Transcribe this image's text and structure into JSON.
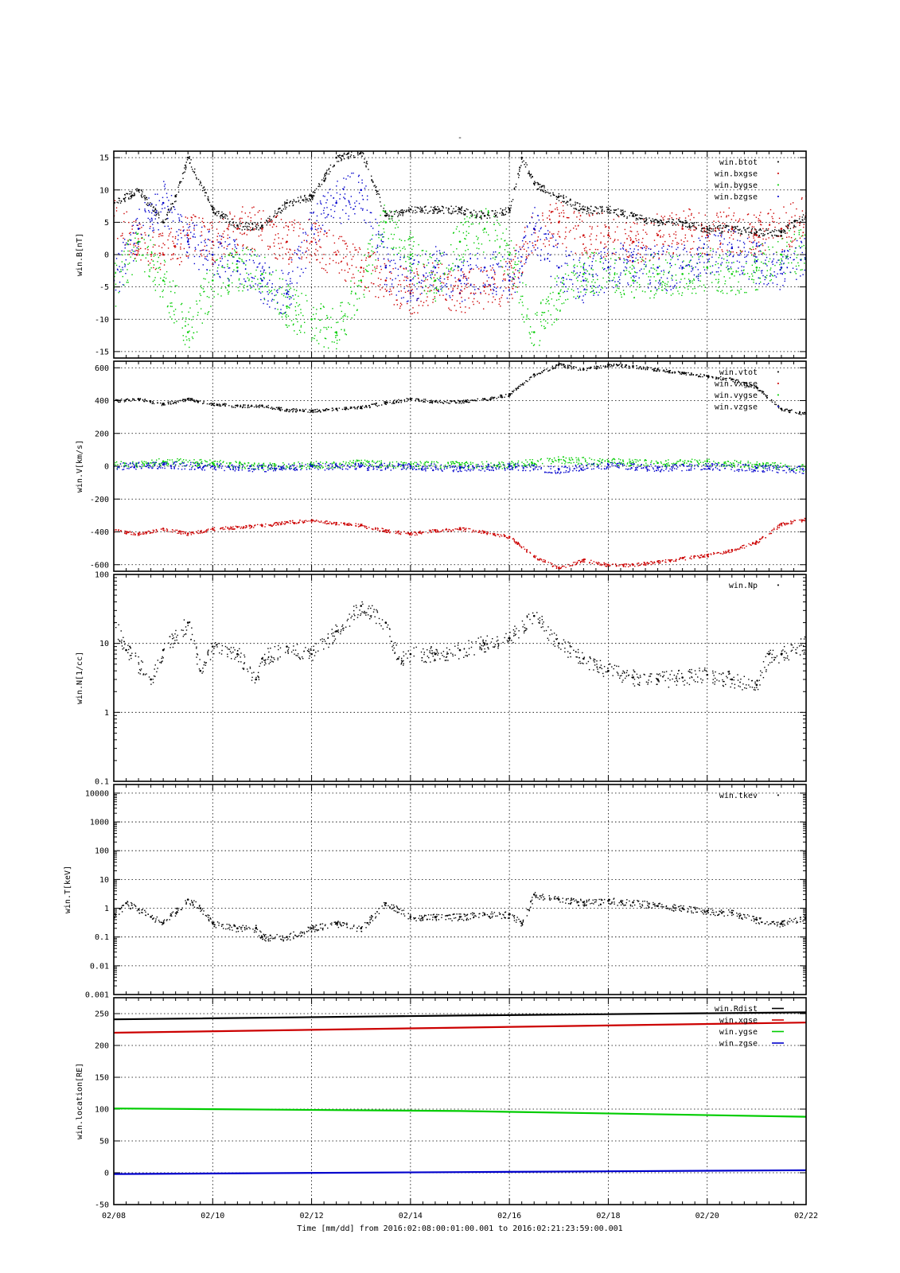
{
  "figure": {
    "title_mark": "-",
    "x_axis": {
      "label": "Time [mm/dd]  from 2016:02:08:00:01:00.001  to  2016:02:21:23:59:00.001",
      "start": "2016-02-08",
      "end": "2016-02-22",
      "ticks": [
        "02/08",
        "02/10",
        "02/12",
        "02/14",
        "02/16",
        "02/18",
        "02/20",
        "02/22"
      ]
    }
  },
  "colors": {
    "black": "#000000",
    "red": "#cc0000",
    "green": "#00cc00",
    "blue": "#0000cc"
  },
  "chart_data": [
    {
      "type": "scatter",
      "ylabel": "win.B[nT]",
      "yscale": "linear",
      "ylim": [
        -16,
        16
      ],
      "yticks": [
        15,
        10,
        5,
        0,
        -5,
        -10,
        -15
      ],
      "ytick_labels": [
        "15",
        "10",
        "5",
        "0",
        "-5",
        "-10",
        "-15"
      ],
      "grid": true,
      "legend_position": "top-right",
      "series": [
        {
          "name": "win.btot",
          "color": "black",
          "x": [
            "2016-02-08",
            "2016-02-08T12",
            "2016-02-09",
            "2016-02-09T06",
            "2016-02-09T12",
            "2016-02-10",
            "2016-02-10T12",
            "2016-02-11",
            "2016-02-11T12",
            "2016-02-12",
            "2016-02-12T12",
            "2016-02-13",
            "2016-02-13T12",
            "2016-02-14",
            "2016-02-14T12",
            "2016-02-15",
            "2016-02-15T12",
            "2016-02-16",
            "2016-02-16T06",
            "2016-02-16T12",
            "2016-02-17",
            "2016-02-17T12",
            "2016-02-18",
            "2016-02-18T12",
            "2016-02-19",
            "2016-02-19T12",
            "2016-02-20",
            "2016-02-20T12",
            "2016-02-21",
            "2016-02-21T12",
            "2016-02-22"
          ],
          "values": [
            8,
            10,
            5,
            9,
            15,
            7,
            4.5,
            4.5,
            8,
            9,
            15,
            16,
            6,
            7,
            7,
            7,
            6,
            7,
            15,
            11,
            9,
            7,
            7,
            6,
            5,
            5,
            4,
            4,
            3.5,
            3.5,
            6
          ]
        },
        {
          "name": "win.bxgse",
          "color": "red",
          "x": [
            "2016-02-08",
            "2016-02-08T12",
            "2016-02-09",
            "2016-02-09T12",
            "2016-02-10",
            "2016-02-10T12",
            "2016-02-11",
            "2016-02-11T12",
            "2016-02-12",
            "2016-02-12T12",
            "2016-02-13",
            "2016-02-13T12",
            "2016-02-14",
            "2016-02-14T12",
            "2016-02-15",
            "2016-02-15T12",
            "2016-02-16",
            "2016-02-16T12",
            "2016-02-17",
            "2016-02-17T12",
            "2016-02-18",
            "2016-02-18T12",
            "2016-02-19",
            "2016-02-19T12",
            "2016-02-20",
            "2016-02-20T12",
            "2016-02-21",
            "2016-02-21T12",
            "2016-02-22"
          ],
          "values": [
            6,
            2,
            0,
            3,
            2,
            4,
            4,
            2,
            2,
            0,
            -2,
            -4,
            -6,
            -4,
            -6,
            -5,
            -4,
            4,
            5,
            3,
            3,
            2,
            3,
            4,
            3,
            4,
            3,
            4,
            6
          ]
        },
        {
          "name": "win.bygse",
          "color": "green",
          "x": [
            "2016-02-08",
            "2016-02-08T12",
            "2016-02-09",
            "2016-02-09T12",
            "2016-02-10",
            "2016-02-10T12",
            "2016-02-11",
            "2016-02-11T12",
            "2016-02-12",
            "2016-02-12T12",
            "2016-02-13",
            "2016-02-13T12",
            "2016-02-14",
            "2016-02-14T12",
            "2016-02-15",
            "2016-02-15T12",
            "2016-02-16",
            "2016-02-16T12",
            "2016-02-17",
            "2016-02-17T12",
            "2016-02-18",
            "2016-02-18T12",
            "2016-02-19",
            "2016-02-19T12",
            "2016-02-20",
            "2016-02-20T12",
            "2016-02-21",
            "2016-02-21T12",
            "2016-02-22"
          ],
          "values": [
            -5,
            2,
            -4,
            -12,
            -4,
            -2,
            -3,
            -8,
            -10,
            -12,
            -4,
            5,
            0,
            -4,
            2,
            4,
            0,
            -12,
            -6,
            -3,
            -2,
            -4,
            -3,
            -3,
            -2,
            -3,
            -2,
            0,
            1
          ]
        },
        {
          "name": "win.bzgse",
          "color": "blue",
          "x": [
            "2016-02-08",
            "2016-02-08T12",
            "2016-02-09",
            "2016-02-09T12",
            "2016-02-10",
            "2016-02-10T12",
            "2016-02-11",
            "2016-02-11T12",
            "2016-02-12",
            "2016-02-12T12",
            "2016-02-13",
            "2016-02-13T12",
            "2016-02-14",
            "2016-02-14T12",
            "2016-02-15",
            "2016-02-15T12",
            "2016-02-16",
            "2016-02-16T12",
            "2016-02-17",
            "2016-02-17T12",
            "2016-02-18",
            "2016-02-18T12",
            "2016-02-19",
            "2016-02-19T12",
            "2016-02-20",
            "2016-02-20T12",
            "2016-02-21",
            "2016-02-21T12",
            "2016-02-22"
          ],
          "values": [
            -4,
            4,
            8,
            2,
            0,
            -1,
            -4,
            -6,
            4,
            8,
            10,
            -2,
            -4,
            -2,
            -4,
            -2,
            -4,
            4,
            -2,
            -4,
            -2,
            -1,
            -2,
            -2,
            0,
            1,
            -1,
            -2,
            0
          ]
        }
      ]
    },
    {
      "type": "scatter",
      "ylabel": "win.V[km/s]",
      "yscale": "linear",
      "ylim": [
        -640,
        640
      ],
      "yticks": [
        600,
        400,
        200,
        0,
        -200,
        -400,
        -600
      ],
      "ytick_labels": [
        "600",
        "400",
        "200",
        "0",
        "-200",
        "-400",
        "-600"
      ],
      "grid": true,
      "legend_position": "top-right",
      "series": [
        {
          "name": "win.vtot",
          "color": "black",
          "x": [
            "2016-02-08",
            "2016-02-08T12",
            "2016-02-09",
            "2016-02-09T12",
            "2016-02-10",
            "2016-02-10T12",
            "2016-02-11",
            "2016-02-11T12",
            "2016-02-12",
            "2016-02-12T12",
            "2016-02-13",
            "2016-02-13T12",
            "2016-02-14",
            "2016-02-14T12",
            "2016-02-15",
            "2016-02-15T12",
            "2016-02-16",
            "2016-02-16T12",
            "2016-02-17",
            "2016-02-17T12",
            "2016-02-18",
            "2016-02-18T12",
            "2016-02-19",
            "2016-02-19T12",
            "2016-02-20",
            "2016-02-20T12",
            "2016-02-21",
            "2016-02-21T12",
            "2016-02-22"
          ],
          "values": [
            400,
            410,
            380,
            410,
            380,
            370,
            370,
            345,
            340,
            350,
            360,
            390,
            410,
            395,
            395,
            410,
            440,
            560,
            620,
            590,
            620,
            610,
            590,
            570,
            550,
            530,
            480,
            350,
            320
          ]
        },
        {
          "name": "win.vxgse",
          "color": "red",
          "x": [
            "2016-02-08",
            "2016-02-08T12",
            "2016-02-09",
            "2016-02-09T12",
            "2016-02-10",
            "2016-02-10T12",
            "2016-02-11",
            "2016-02-11T12",
            "2016-02-12",
            "2016-02-12T12",
            "2016-02-13",
            "2016-02-13T12",
            "2016-02-14",
            "2016-02-14T12",
            "2016-02-15",
            "2016-02-15T12",
            "2016-02-16",
            "2016-02-16T12",
            "2016-02-17",
            "2016-02-17T12",
            "2016-02-18",
            "2016-02-18T12",
            "2016-02-19",
            "2016-02-19T12",
            "2016-02-20",
            "2016-02-20T12",
            "2016-02-21",
            "2016-02-21T12",
            "2016-02-22"
          ],
          "values": [
            -390,
            -410,
            -380,
            -410,
            -380,
            -370,
            -360,
            -340,
            -330,
            -345,
            -360,
            -390,
            -410,
            -390,
            -380,
            -400,
            -430,
            -550,
            -620,
            -570,
            -600,
            -600,
            -580,
            -560,
            -540,
            -510,
            -460,
            -350,
            -320
          ]
        },
        {
          "name": "win.vygse",
          "color": "green",
          "x": [
            "2016-02-08",
            "2016-02-09",
            "2016-02-10",
            "2016-02-11",
            "2016-02-12",
            "2016-02-13",
            "2016-02-14",
            "2016-02-15",
            "2016-02-16",
            "2016-02-17",
            "2016-02-18",
            "2016-02-19",
            "2016-02-20",
            "2016-02-21",
            "2016-02-22"
          ],
          "values": [
            10,
            30,
            20,
            0,
            10,
            20,
            10,
            10,
            10,
            40,
            30,
            20,
            30,
            10,
            -10
          ]
        },
        {
          "name": "win.vzgse",
          "color": "blue",
          "x": [
            "2016-02-08",
            "2016-02-09",
            "2016-02-10",
            "2016-02-11",
            "2016-02-12",
            "2016-02-13",
            "2016-02-14",
            "2016-02-15",
            "2016-02-16",
            "2016-02-17",
            "2016-02-18",
            "2016-02-19",
            "2016-02-20",
            "2016-02-21",
            "2016-02-22"
          ],
          "values": [
            0,
            10,
            0,
            -10,
            0,
            0,
            0,
            -10,
            0,
            -20,
            10,
            -10,
            0,
            -10,
            -20
          ]
        }
      ]
    },
    {
      "type": "scatter",
      "ylabel": "win.N[1/cc]",
      "yscale": "log",
      "ylim": [
        0.1,
        100
      ],
      "yticks": [
        100,
        10,
        1,
        0.1
      ],
      "ytick_labels": [
        "100",
        "10",
        "1",
        "0.1"
      ],
      "grid": true,
      "legend_position": "top-right",
      "series": [
        {
          "name": "win.Np",
          "color": "black",
          "x": [
            "2016-02-08",
            "2016-02-08T06",
            "2016-02-08T18",
            "2016-02-09",
            "2016-02-09T12",
            "2016-02-09T18",
            "2016-02-10",
            "2016-02-10T12",
            "2016-02-10T21",
            "2016-02-11",
            "2016-02-11T12",
            "2016-02-12",
            "2016-02-12T12",
            "2016-02-13",
            "2016-02-13T12",
            "2016-02-13T18",
            "2016-02-14",
            "2016-02-14T12",
            "2016-02-15",
            "2016-02-15T12",
            "2016-02-16",
            "2016-02-16T12",
            "2016-02-17",
            "2016-02-17T12",
            "2016-02-18",
            "2016-02-18T12",
            "2016-02-19",
            "2016-02-19T12",
            "2016-02-20",
            "2016-02-20T12",
            "2016-02-21",
            "2016-02-21T06",
            "2016-02-21T12",
            "2016-02-22"
          ],
          "values": [
            20,
            8,
            3,
            8,
            20,
            4,
            9,
            7,
            3,
            6,
            9,
            7,
            15,
            35,
            20,
            6,
            7,
            7,
            8,
            10,
            12,
            25,
            10,
            6,
            4,
            3.2,
            3,
            3.2,
            3.5,
            3,
            2.5,
            7,
            7,
            10
          ]
        }
      ]
    },
    {
      "type": "scatter",
      "ylabel": "win.T[keV]",
      "yscale": "log",
      "ylim": [
        0.001,
        20000
      ],
      "yticks": [
        10000,
        1000,
        100,
        10,
        1,
        0.1,
        0.01,
        0.001
      ],
      "ytick_labels": [
        "10000",
        "1000",
        "100",
        "10",
        "1",
        "0.1",
        "0.01",
        "0.001"
      ],
      "grid": true,
      "legend_position": "top-right",
      "series": [
        {
          "name": "win.tkev",
          "color": "black",
          "x": [
            "2016-02-08",
            "2016-02-08T06",
            "2016-02-08T18",
            "2016-02-09",
            "2016-02-09T12",
            "2016-02-09T18",
            "2016-02-10",
            "2016-02-10T12",
            "2016-02-10T21",
            "2016-02-11",
            "2016-02-11T12",
            "2016-02-12",
            "2016-02-12T12",
            "2016-02-13",
            "2016-02-13T12",
            "2016-02-14",
            "2016-02-14T12",
            "2016-02-15",
            "2016-02-15T12",
            "2016-02-16",
            "2016-02-16T06",
            "2016-02-16T12",
            "2016-02-17",
            "2016-02-17T12",
            "2016-02-18",
            "2016-02-18T12",
            "2016-02-19",
            "2016-02-19T12",
            "2016-02-20",
            "2016-02-20T12",
            "2016-02-21",
            "2016-02-21T12",
            "2016-02-22"
          ],
          "values": [
            0.5,
            1.5,
            0.5,
            0.3,
            2,
            1,
            0.3,
            0.2,
            0.2,
            0.1,
            0.1,
            0.2,
            0.3,
            0.2,
            1.5,
            0.5,
            0.5,
            0.5,
            0.6,
            0.6,
            0.3,
            3,
            2,
            1.6,
            1.8,
            1.6,
            1.2,
            1,
            0.8,
            0.7,
            0.4,
            0.3,
            0.5
          ]
        }
      ]
    },
    {
      "type": "line",
      "ylabel": "win.location[RE]",
      "yscale": "linear",
      "ylim": [
        -50,
        275
      ],
      "yticks": [
        250,
        200,
        150,
        100,
        50,
        0,
        -50
      ],
      "ytick_labels": [
        "250",
        "200",
        "150",
        "100",
        "50",
        "0",
        "-50"
      ],
      "grid": true,
      "legend_position": "top-right",
      "series": [
        {
          "name": "win.Rdist",
          "color": "black",
          "x": [
            "2016-02-08",
            "2016-02-15",
            "2016-02-22"
          ],
          "values": [
            241,
            247,
            252
          ]
        },
        {
          "name": "win.xgse",
          "color": "red",
          "x": [
            "2016-02-08",
            "2016-02-15",
            "2016-02-22"
          ],
          "values": [
            220,
            228,
            236
          ]
        },
        {
          "name": "win.ygse",
          "color": "green",
          "x": [
            "2016-02-08",
            "2016-02-15",
            "2016-02-22"
          ],
          "values": [
            101,
            97,
            88
          ]
        },
        {
          "name": "win.zgse",
          "color": "blue",
          "x": [
            "2016-02-08",
            "2016-02-15",
            "2016-02-22"
          ],
          "values": [
            -2,
            1,
            4
          ]
        }
      ]
    }
  ]
}
